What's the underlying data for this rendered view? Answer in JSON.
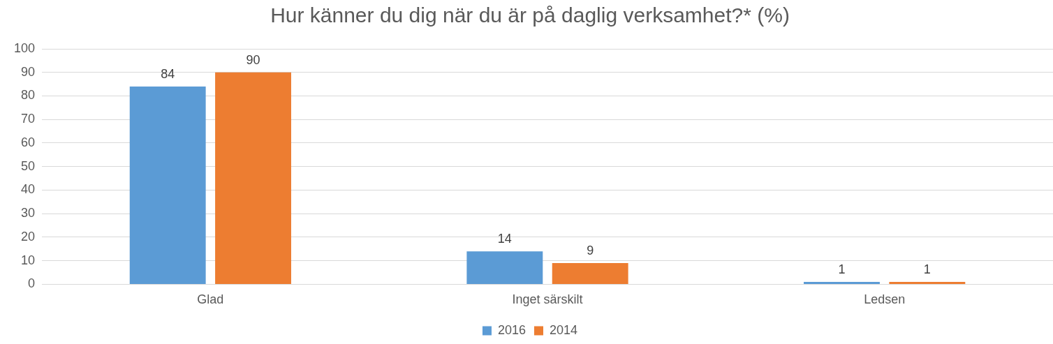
{
  "chart_data": {
    "type": "bar",
    "title": "Hur känner du dig när du är på daglig verksamhet?* (%)",
    "categories": [
      "Glad",
      "Inget särskilt",
      "Ledsen"
    ],
    "series": [
      {
        "name": "2016",
        "color": "#5b9bd5",
        "values": [
          84,
          14,
          1
        ]
      },
      {
        "name": "2014",
        "color": "#ed7d31",
        "values": [
          90,
          9,
          1
        ]
      }
    ],
    "ylim": [
      0,
      100
    ],
    "yticks": [
      0,
      10,
      20,
      30,
      40,
      50,
      60,
      70,
      80,
      90,
      100
    ],
    "grid": "y",
    "legend": "bottom",
    "data_labels": true
  }
}
